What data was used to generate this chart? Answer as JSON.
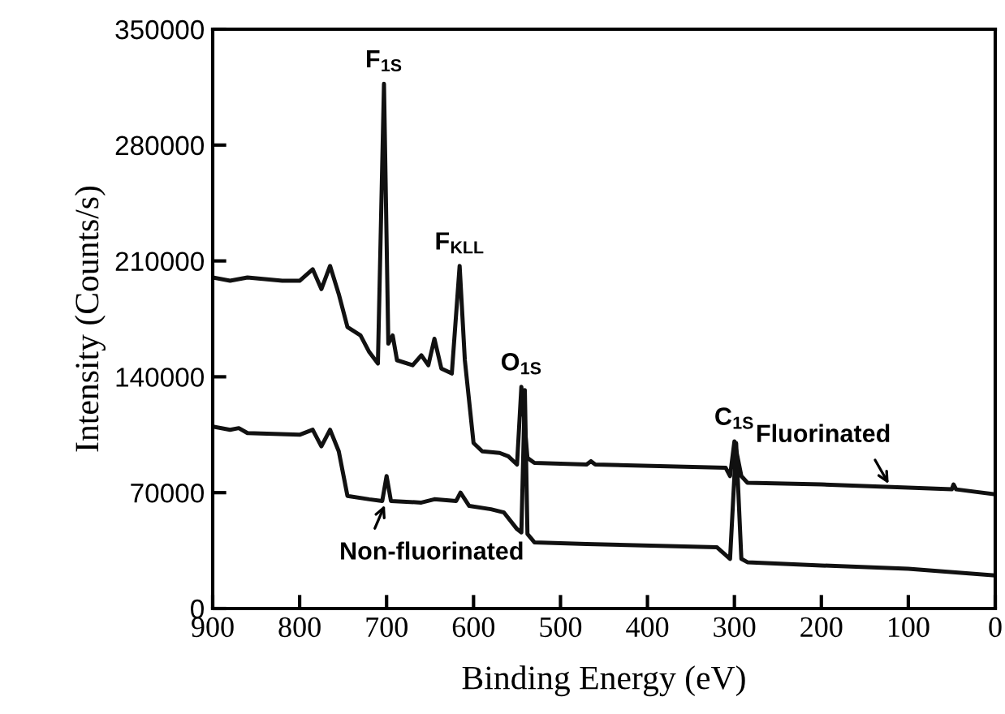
{
  "chart_data": {
    "type": "line",
    "xlabel": "Binding Energy (eV)",
    "ylabel": "Intensity (Counts/s)",
    "xlim": [
      900,
      0
    ],
    "xticks": [
      900,
      800,
      700,
      600,
      500,
      400,
      300,
      200,
      100,
      0
    ],
    "ylim": [
      0,
      350000
    ],
    "yticks": [
      0,
      70000,
      140000,
      210000,
      280000,
      350000
    ],
    "grid": false,
    "legend": false,
    "marker": "none",
    "line_style": "solid",
    "series": [
      {
        "color": "#111111",
        "x": [
          900,
          880,
          860,
          820,
          800,
          785,
          775,
          765,
          755,
          745,
          730,
          720,
          710,
          703,
          698,
          693,
          688,
          670,
          660,
          652,
          645,
          637,
          625,
          616,
          610,
          600,
          590,
          570,
          560,
          550,
          545,
          538,
          530,
          470,
          465,
          460,
          310,
          305,
          300,
          292,
          285,
          200,
          100,
          50,
          48,
          45,
          0
        ],
        "values": [
          200000,
          198000,
          200000,
          198000,
          198000,
          205000,
          193000,
          207000,
          190000,
          170000,
          165000,
          155000,
          148000,
          317000,
          160000,
          165000,
          150000,
          147000,
          153000,
          147000,
          163000,
          145000,
          142000,
          207000,
          150000,
          100000,
          95000,
          94000,
          92000,
          87000,
          134000,
          91000,
          88000,
          87000,
          89000,
          87000,
          85000,
          80000,
          101000,
          80000,
          76000,
          75000,
          73000,
          72000,
          75000,
          72000,
          69000
        ]
      },
      {
        "color": "#111111",
        "x": [
          900,
          880,
          870,
          860,
          800,
          785,
          775,
          765,
          755,
          745,
          720,
          705,
          700,
          695,
          660,
          645,
          620,
          615,
          605,
          580,
          565,
          550,
          545,
          541,
          538,
          530,
          470,
          320,
          305,
          298,
          292,
          285,
          200,
          100,
          0
        ],
        "values": [
          110000,
          108000,
          109000,
          106000,
          105000,
          108000,
          98000,
          108000,
          95000,
          68000,
          66000,
          65000,
          80000,
          65000,
          64000,
          66000,
          65000,
          70000,
          62000,
          60000,
          58000,
          48000,
          46000,
          132000,
          45000,
          40000,
          39000,
          37000,
          30000,
          100000,
          30000,
          28000,
          26000,
          24000,
          20000
        ]
      }
    ],
    "annotations": [
      {
        "text": "F$_{1S}$",
        "x": 703,
        "y": 317000
      },
      {
        "text": "F$_{KLL}$",
        "x": 616,
        "y": 207000
      },
      {
        "text": "O$_{1S}$",
        "x": 545,
        "y": 134000
      },
      {
        "text": "C$_{1S}$",
        "x": 300,
        "y": 101000
      },
      {
        "text": "Fluorinated",
        "x": 120,
        "y": 73000
      },
      {
        "text": "Non-fluorinated",
        "x": 700,
        "y": 65000
      }
    ]
  }
}
